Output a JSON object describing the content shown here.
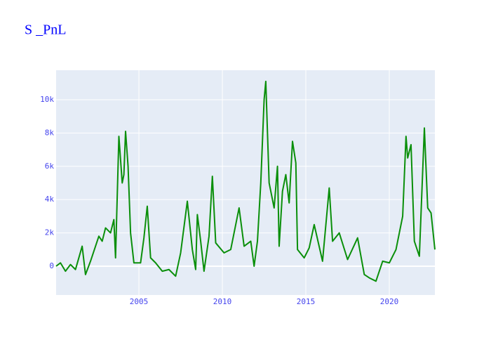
{
  "chart_data": {
    "type": "line",
    "title": "S _PnL",
    "x": [
      2000.04,
      2000.3,
      2000.6,
      2000.9,
      2001.2,
      2001.6,
      2001.8,
      2002.1,
      2002.4,
      2002.6,
      2002.8,
      2003.0,
      2003.3,
      2003.5,
      2003.6,
      2003.8,
      2004.0,
      2004.1,
      2004.2,
      2004.35,
      2004.5,
      2004.7,
      2005.1,
      2005.3,
      2005.5,
      2005.7,
      2006.0,
      2006.4,
      2006.8,
      2007.2,
      2007.5,
      2007.9,
      2008.2,
      2008.4,
      2008.5,
      2008.7,
      2008.9,
      2009.2,
      2009.4,
      2009.6,
      2010.1,
      2010.5,
      2011.0,
      2011.3,
      2011.7,
      2011.9,
      2012.1,
      2012.3,
      2012.5,
      2012.6,
      2012.8,
      2013.1,
      2013.3,
      2013.4,
      2013.6,
      2013.8,
      2014.0,
      2014.2,
      2014.4,
      2014.5,
      2014.9,
      2015.2,
      2015.5,
      2016.0,
      2016.4,
      2016.6,
      2017.0,
      2017.5,
      2018.1,
      2018.5,
      2018.8,
      2019.2,
      2019.6,
      2020.0,
      2020.4,
      2020.8,
      2021.0,
      2021.1,
      2021.3,
      2021.5,
      2021.8,
      2022.1,
      2022.3,
      2022.5,
      2022.73
    ],
    "series": [
      {
        "name": "S _PnL",
        "color": "#0a8f0a",
        "values": [
          0,
          200,
          -300,
          100,
          -200,
          1200,
          -500,
          300,
          1200,
          1800,
          1500,
          2300,
          2000,
          2800,
          500,
          7800,
          5000,
          5500,
          8100,
          6000,
          2000,
          200,
          200,
          1700,
          3600,
          500,
          200,
          -300,
          -200,
          -600,
          800,
          3900,
          1000,
          -200,
          3100,
          1500,
          -300,
          1800,
          5400,
          1400,
          800,
          1000,
          3500,
          1200,
          1500,
          0,
          1500,
          5000,
          10000,
          11100,
          5000,
          3500,
          6000,
          1200,
          4500,
          5500,
          3800,
          7500,
          6200,
          1000,
          500,
          1100,
          2500,
          300,
          4700,
          1500,
          2000,
          400,
          1700,
          -500,
          -700,
          -900,
          300,
          200,
          1000,
          3000,
          7800,
          6500,
          7300,
          1500,
          600,
          8300,
          3500,
          3200,
          1000
        ]
      }
    ],
    "xlim": [
      2000.04,
      2022.73
    ],
    "ylim": [
      -1730,
      11770
    ],
    "xticks": [
      2005,
      2010,
      2015,
      2020
    ],
    "yticks": [
      0,
      {
        "value": 2000,
        "label": "2k"
      },
      {
        "value": 4000,
        "label": "4k"
      },
      {
        "value": 6000,
        "label": "6k"
      },
      {
        "value": 8000,
        "label": "8k"
      },
      {
        "value": 10000,
        "label": "10k"
      }
    ],
    "grid": true
  }
}
